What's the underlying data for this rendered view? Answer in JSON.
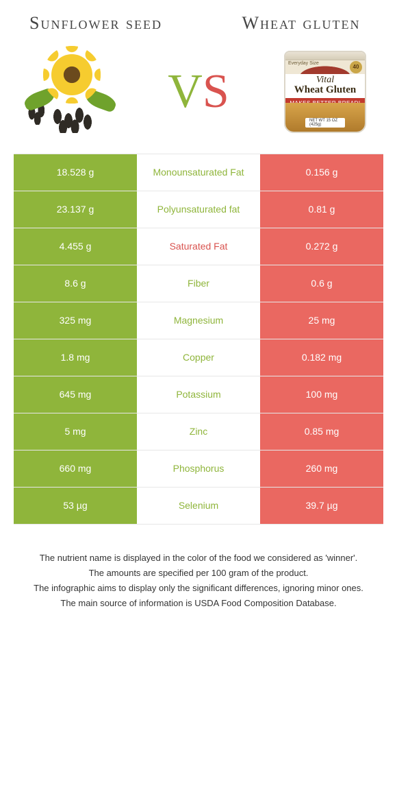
{
  "left_food": {
    "name": "Sunflower seed"
  },
  "right_food": {
    "name": "Wheat gluten"
  },
  "vs": {
    "v": "V",
    "s": "S"
  },
  "colors": {
    "left": "#8fb53b",
    "right": "#ea6861",
    "txt_left": "#8fb53b",
    "txt_right": "#d9534f"
  },
  "can": {
    "brand_small": "Everyday Size",
    "badge": "40",
    "line1": "Vital",
    "line2": "Wheat Gluten",
    "strip": "MAKES BETTER BREAD!",
    "net": "NET WT 15 OZ (425g)"
  },
  "rows": [
    {
      "left": "18.528 g",
      "label": "Monounsaturated Fat",
      "right": "0.156 g",
      "winner": "left"
    },
    {
      "left": "23.137 g",
      "label": "Polyunsaturated fat",
      "right": "0.81 g",
      "winner": "left"
    },
    {
      "left": "4.455 g",
      "label": "Saturated Fat",
      "right": "0.272 g",
      "winner": "right"
    },
    {
      "left": "8.6 g",
      "label": "Fiber",
      "right": "0.6 g",
      "winner": "left"
    },
    {
      "left": "325 mg",
      "label": "Magnesium",
      "right": "25 mg",
      "winner": "left"
    },
    {
      "left": "1.8 mg",
      "label": "Copper",
      "right": "0.182 mg",
      "winner": "left"
    },
    {
      "left": "645 mg",
      "label": "Potassium",
      "right": "100 mg",
      "winner": "left"
    },
    {
      "left": "5 mg",
      "label": "Zinc",
      "right": "0.85 mg",
      "winner": "left"
    },
    {
      "left": "660 mg",
      "label": "Phosphorus",
      "right": "260 mg",
      "winner": "left"
    },
    {
      "left": "53 µg",
      "label": "Selenium",
      "right": "39.7 µg",
      "winner": "left"
    }
  ],
  "notes": [
    "The nutrient name is displayed in the color of the food we considered as 'winner'.",
    "The amounts are specified per 100 gram of the product.",
    "The infographic aims to display only the significant differences, ignoring minor ones.",
    "The main source of information is USDA Food Composition Database."
  ]
}
